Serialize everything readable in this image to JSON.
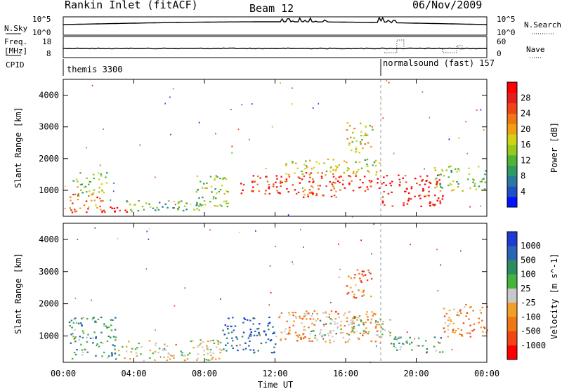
{
  "header": {
    "station": "Rankin Inlet (fitACF)",
    "beam": "Beam 12",
    "date": "06/Nov/2009"
  },
  "top_panels": {
    "nsky": {
      "left_label": "N.Sky",
      "right_label": "N.Search",
      "left_ticks": [
        "10^5",
        "10^0"
      ],
      "right_ticks": [
        "10^5",
        "10^0"
      ]
    },
    "freq": {
      "left_label_1": "Freq.",
      "left_label_2": "[MHz]",
      "left_ticks": [
        "18",
        "8"
      ],
      "right_label": "Nave",
      "right_ticks": [
        "60",
        "0"
      ]
    },
    "cpid": {
      "label": "CPID",
      "segments": [
        {
          "name": "themis 3300",
          "start_hr": 0
        },
        {
          "name": "normalsound (fast) 157",
          "start_hr": 18.0
        }
      ]
    }
  },
  "chart_data": [
    {
      "type": "heatmap",
      "name": "Power",
      "xlabel": "",
      "ylabel": "Slant Range [km]",
      "x_ticks": [
        "00:00",
        "04:00",
        "08:00",
        "12:00",
        "16:00",
        "20:00",
        "00:00"
      ],
      "x_range_hr": [
        0,
        24
      ],
      "y_ticks": [
        "1000",
        "2000",
        "3000",
        "4000"
      ],
      "y_range_km": [
        180,
        4500
      ],
      "colorbar": {
        "label": "Power [dB]",
        "ticks": [
          "4",
          "8",
          "12",
          "16",
          "20",
          "24",
          "28"
        ],
        "range": [
          0,
          32
        ],
        "colors": [
          "#0014ff",
          "#1e50c8",
          "#2a78a0",
          "#2e9a64",
          "#50b432",
          "#96c81e",
          "#d2d214",
          "#f0a014",
          "#f07814",
          "#f04614",
          "#e61e1e",
          "#ff0000"
        ]
      },
      "regions": [
        {
          "t0": 0.3,
          "t1": 2.5,
          "r0": 300,
          "r1": 900,
          "level": 0.75
        },
        {
          "t0": 2.0,
          "t1": 3.8,
          "r0": 250,
          "r1": 500,
          "level": 0.95
        },
        {
          "t0": 0.5,
          "t1": 2.5,
          "r0": 900,
          "r1": 1600,
          "level": 0.45
        },
        {
          "t0": 3.5,
          "t1": 8.0,
          "r0": 300,
          "r1": 700,
          "level": 0.35
        },
        {
          "t0": 7.5,
          "t1": 9.5,
          "r0": 500,
          "r1": 1500,
          "level": 0.45
        },
        {
          "t0": 10.0,
          "t1": 13.5,
          "r0": 900,
          "r1": 1500,
          "level": 0.85
        },
        {
          "t0": 13.0,
          "t1": 15.5,
          "r0": 800,
          "r1": 1600,
          "level": 0.8
        },
        {
          "t0": 15.5,
          "t1": 18.0,
          "r0": 1000,
          "r1": 1500,
          "level": 0.88
        },
        {
          "t0": 18.0,
          "t1": 21.5,
          "r0": 500,
          "r1": 1500,
          "level": 0.92
        },
        {
          "t0": 21.0,
          "t1": 24.0,
          "r0": 1000,
          "r1": 1800,
          "level": 0.45
        },
        {
          "t0": 16.0,
          "t1": 17.5,
          "r0": 2200,
          "r1": 3200,
          "level": 0.55
        },
        {
          "t0": 12.5,
          "t1": 18.0,
          "r0": 1500,
          "r1": 2000,
          "level": 0.5
        }
      ]
    },
    {
      "type": "heatmap",
      "name": "Velocity",
      "xlabel": "Time UT",
      "ylabel": "Slant Range [km]",
      "x_ticks": [
        "00:00",
        "04:00",
        "08:00",
        "12:00",
        "16:00",
        "20:00",
        "00:00"
      ],
      "x_range_hr": [
        0,
        24
      ],
      "y_ticks": [
        "1000",
        "2000",
        "3000",
        "4000"
      ],
      "y_range_km": [
        180,
        4500
      ],
      "colorbar": {
        "label": "Velocity [m s^-1]",
        "ticks": [
          "1000",
          "500",
          "100",
          "25",
          "-25",
          "-100",
          "-500",
          "-1000"
        ],
        "colors": [
          "#1e3cd2",
          "#2a64b4",
          "#2e8c64",
          "#46b43c",
          "#c8c8c8",
          "#f0a028",
          "#f07814",
          "#f04614",
          "#ff0000"
        ]
      },
      "regions": [
        {
          "t0": 0.3,
          "t1": 3.0,
          "r0": 300,
          "r1": 1600,
          "level": 0.3
        },
        {
          "t0": 3.0,
          "t1": 9.0,
          "r0": 250,
          "r1": 900,
          "level": 0.5
        },
        {
          "t0": 9.0,
          "t1": 12.0,
          "r0": 500,
          "r1": 1600,
          "level": 0.15
        },
        {
          "t0": 12.0,
          "t1": 18.0,
          "r0": 800,
          "r1": 1800,
          "level": 0.65
        },
        {
          "t0": 14.0,
          "t1": 18.5,
          "r0": 1000,
          "r1": 1600,
          "level": 0.45
        },
        {
          "t0": 18.5,
          "t1": 21.5,
          "r0": 500,
          "r1": 1000,
          "level": 0.35
        },
        {
          "t0": 21.5,
          "t1": 24.0,
          "r0": 1000,
          "r1": 2000,
          "level": 0.7
        },
        {
          "t0": 16.0,
          "t1": 17.5,
          "r0": 2200,
          "r1": 3100,
          "level": 0.75
        }
      ]
    }
  ]
}
